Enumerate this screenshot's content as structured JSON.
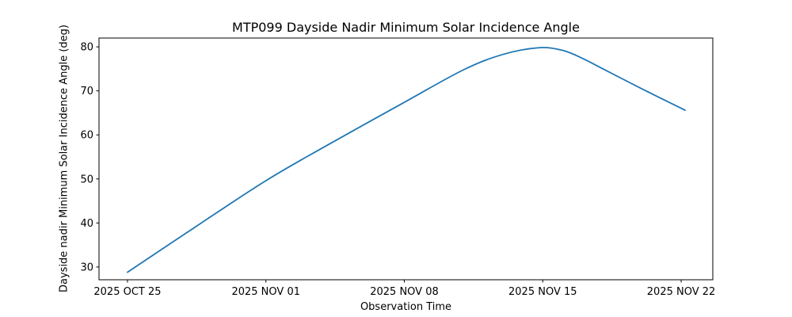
{
  "figure": {
    "background": "#ffffff",
    "text_color": "#000000",
    "spine_color": "#000000"
  },
  "chart_data": {
    "type": "line",
    "title": "MTP099 Dayside Nadir Minimum Solar Incidence Angle",
    "xlabel": "Observation Time",
    "ylabel": "Dayside nadir Minimum Solar Incidence Angle (deg)",
    "x_unit": "days since 2025 OCT 25",
    "x_ticks": [
      {
        "day": 0,
        "label": "2025 OCT 25"
      },
      {
        "day": 7,
        "label": "2025 NOV 01"
      },
      {
        "day": 14,
        "label": "2025 NOV 08"
      },
      {
        "day": 21,
        "label": "2025 NOV 15"
      },
      {
        "day": 28,
        "label": "2025 NOV 22"
      }
    ],
    "y_ticks": [
      30,
      40,
      50,
      60,
      70,
      80
    ],
    "xlim_days": [
      -1.44,
      29.6
    ],
    "ylim": [
      27.1,
      82.0
    ],
    "grid": false,
    "legend": false,
    "series": [
      {
        "name": "dayside-nadir-min-solar-incidence-angle",
        "color": "#1f77b4",
        "line_width": 1.8,
        "markers": false,
        "x_days": [
          0,
          3.5,
          7,
          10,
          14,
          17,
          19,
          20.8,
          22,
          23,
          24,
          26,
          28.2
        ],
        "y_deg": [
          28.8,
          39.3,
          49.6,
          57.4,
          67.4,
          74.8,
          78.3,
          79.8,
          79.2,
          77.4,
          75.1,
          70.5,
          65.6
        ]
      }
    ],
    "peak": {
      "approx_day": 20.8,
      "approx_value_deg": 79.8
    },
    "start_value_deg": 28.8,
    "end_value_deg": 65.6
  }
}
